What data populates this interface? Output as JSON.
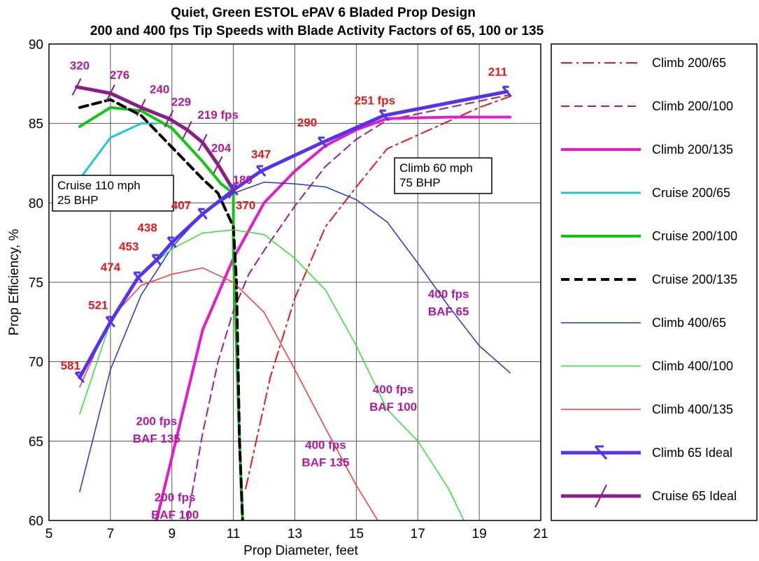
{
  "chart_data": {
    "type": "line",
    "title": "Quiet, Green ESTOL ePAV 6 Bladed Prop Design",
    "subtitle": "200 and 400 fps Tip Speeds with Blade Activity Factors of 65, 100 or 135",
    "xlabel": "Prop Diameter, feet",
    "ylabel": "Prop Efficiency, %",
    "xlim": [
      5,
      21
    ],
    "ylim": [
      60,
      90
    ],
    "xticks": [
      5,
      7,
      9,
      11,
      13,
      15,
      17,
      19,
      21
    ],
    "yticks": [
      60,
      65,
      70,
      75,
      80,
      85,
      90
    ],
    "grid": true,
    "legend_position": "right",
    "series": [
      {
        "name": "Climb 200/65",
        "color": "#e31a1c",
        "dash": "dashdot",
        "width": 2,
        "x": [
          11.4,
          12.2,
          13.0,
          14.0,
          15.0,
          16.0,
          17.5,
          19.0,
          20.0
        ],
        "y": [
          62.0,
          69.0,
          74.0,
          78.5,
          81.0,
          83.4,
          84.7,
          86.0,
          86.7
        ]
      },
      {
        "name": "Climb 200/100",
        "color": "#9d1f8f",
        "dash": "dash",
        "width": 2,
        "x": [
          9.5,
          10.0,
          10.5,
          11.0,
          11.5,
          12.0,
          13.0,
          14.0,
          15.0,
          16.0,
          18.0,
          20.0
        ],
        "y": [
          60.0,
          65.5,
          70.0,
          73.2,
          75.5,
          77.0,
          79.8,
          82.3,
          84.0,
          85.2,
          86.0,
          86.8
        ]
      },
      {
        "name": "Climb 200/135",
        "color": "#e11dc9",
        "dash": "solid",
        "width": 4,
        "x": [
          8.5,
          9.0,
          9.5,
          10.0,
          11.0,
          12.0,
          13.0,
          14.0,
          15.0,
          16.0,
          18.0,
          20.0
        ],
        "y": [
          60.0,
          64.0,
          68.0,
          72.0,
          76.5,
          80.0,
          82.0,
          83.6,
          84.6,
          85.3,
          85.4,
          85.4
        ]
      },
      {
        "name": "Cruise 200/65",
        "color": "#22c6cf",
        "dash": "solid",
        "width": 3,
        "x": [
          6.0,
          7.0,
          8.0,
          8.5
        ],
        "y": [
          81.5,
          84.1,
          85.0,
          85.0
        ]
      },
      {
        "name": "Cruise 200/100",
        "color": "#11c711",
        "dash": "solid",
        "width": 4,
        "x": [
          6.0,
          7.0,
          8.0,
          9.0,
          10.0,
          10.6,
          11.0,
          11.0,
          11.2,
          11.3
        ],
        "y": [
          84.8,
          86.0,
          85.8,
          84.7,
          82.6,
          81.2,
          80.6,
          77.0,
          65.0,
          60.0
        ]
      },
      {
        "name": "Cruise 200/135",
        "color": "#000000",
        "dash": "dash",
        "width": 4,
        "x": [
          6.0,
          7.0,
          8.0,
          9.0,
          10.0,
          10.5,
          11.0,
          11.1,
          11.2,
          11.3
        ],
        "y": [
          86.0,
          86.5,
          85.5,
          83.5,
          81.5,
          80.6,
          78.5,
          75.0,
          65.0,
          60.0
        ]
      },
      {
        "name": "Climb 400/65",
        "color": "#2233dd",
        "dash": "solid",
        "width": 1.5,
        "x": [
          6.0,
          7.0,
          8.0,
          9.0,
          10.0,
          11.0,
          12.0,
          13.0,
          14.0,
          15.0,
          16.0,
          17.0,
          18.0,
          19.0,
          20.0
        ],
        "y": [
          61.8,
          69.5,
          74.2,
          77.2,
          79.3,
          80.6,
          81.3,
          81.2,
          81.0,
          80.2,
          78.8,
          76.2,
          73.5,
          71.0,
          69.3
        ]
      },
      {
        "name": "Climb 400/100",
        "color": "#2ee32e",
        "dash": "solid",
        "width": 1.5,
        "x": [
          6.0,
          7.0,
          8.0,
          9.0,
          10.0,
          11.0,
          12.0,
          13.0,
          14.0,
          15.0,
          16.0,
          17.0,
          18.0,
          18.5
        ],
        "y": [
          66.7,
          72.5,
          75.5,
          77.1,
          78.1,
          78.3,
          78.0,
          76.5,
          74.5,
          71.0,
          67.0,
          65.0,
          62.0,
          60.0
        ]
      },
      {
        "name": "Climb 400/135",
        "color": "#ff3333",
        "dash": "solid",
        "width": 1.5,
        "x": [
          6.0,
          7.0,
          8.0,
          9.0,
          10.0,
          11.0,
          12.0,
          13.0,
          14.0,
          15.0,
          15.7
        ],
        "y": [
          68.4,
          72.7,
          74.8,
          75.5,
          75.9,
          75.0,
          73.1,
          69.5,
          65.8,
          62.2,
          60.0
        ]
      },
      {
        "name": "Climb 65 Ideal",
        "color": "#5533ee",
        "dash": "solid",
        "width": 5,
        "x": [
          6.0,
          7.0,
          7.9,
          8.5,
          9.0,
          10.0,
          11.0,
          11.9,
          13.9,
          15.9,
          19.9
        ],
        "y": [
          69.0,
          72.5,
          75.3,
          76.4,
          77.5,
          79.3,
          80.8,
          82.0,
          83.8,
          85.5,
          87.0
        ]
      },
      {
        "name": "Cruise 65 Ideal",
        "color": "#8c1c86",
        "dash": "solid",
        "width": 5,
        "x": [
          5.9,
          7.0,
          8.0,
          8.9,
          9.5,
          10.0,
          10.5,
          11.0
        ],
        "y": [
          87.3,
          86.9,
          86.0,
          85.3,
          84.6,
          83.8,
          82.4,
          80.8
        ]
      }
    ],
    "annotations": [
      {
        "text": "581",
        "color": "red",
        "x": 5.7,
        "y": 69.5
      },
      {
        "text": "521",
        "color": "red",
        "x": 6.6,
        "y": 73.3
      },
      {
        "text": "474",
        "color": "red",
        "x": 7.0,
        "y": 75.7
      },
      {
        "text": "453",
        "color": "red",
        "x": 7.6,
        "y": 77.0
      },
      {
        "text": "438",
        "color": "red",
        "x": 8.2,
        "y": 78.2
      },
      {
        "text": "407",
        "color": "red",
        "x": 9.3,
        "y": 79.6
      },
      {
        "text": "370",
        "color": "red",
        "x": 11.4,
        "y": 79.6
      },
      {
        "text": "347",
        "color": "red",
        "x": 11.9,
        "y": 82.8
      },
      {
        "text": "290",
        "color": "red",
        "x": 13.4,
        "y": 84.8
      },
      {
        "text": "251 fps",
        "color": "red",
        "x": 15.6,
        "y": 86.2
      },
      {
        "text": "211",
        "color": "red",
        "x": 19.6,
        "y": 88.0
      },
      {
        "text": "320",
        "color": "magenta",
        "x": 6.0,
        "y": 88.4
      },
      {
        "text": "276",
        "color": "magenta",
        "x": 7.3,
        "y": 87.8
      },
      {
        "text": "240",
        "color": "magenta",
        "x": 8.6,
        "y": 86.9
      },
      {
        "text": "229",
        "color": "magenta",
        "x": 9.3,
        "y": 86.1
      },
      {
        "text": "219 fps",
        "color": "magenta",
        "x": 10.5,
        "y": 85.3
      },
      {
        "text": "204",
        "color": "magenta",
        "x": 10.6,
        "y": 83.2
      },
      {
        "text": "189",
        "color": "magenta",
        "x": 11.3,
        "y": 81.2
      },
      {
        "text": "400 fps",
        "color": "magenta",
        "x": 18.0,
        "y": 74.0
      },
      {
        "text": "BAF 65",
        "color": "magenta",
        "x": 18.0,
        "y": 72.9
      },
      {
        "text": "400 fps",
        "color": "magenta",
        "x": 16.2,
        "y": 68.0
      },
      {
        "text": "BAF 100",
        "color": "magenta",
        "x": 16.2,
        "y": 66.9
      },
      {
        "text": "400 fps",
        "color": "magenta",
        "x": 14.0,
        "y": 64.5
      },
      {
        "text": "BAF 135",
        "color": "magenta",
        "x": 14.0,
        "y": 63.4
      },
      {
        "text": "200 fps",
        "color": "magenta",
        "x": 8.5,
        "y": 66.0
      },
      {
        "text": "BAF 135",
        "color": "magenta",
        "x": 8.5,
        "y": 64.9
      },
      {
        "text": "200 fps",
        "color": "magenta",
        "x": 9.1,
        "y": 61.2
      },
      {
        "text": "BAF 100",
        "color": "magenta",
        "x": 9.1,
        "y": 60.1
      }
    ],
    "boxes": [
      {
        "lines": [
          "Cruise 110 mph",
          "25 BHP"
        ]
      },
      {
        "lines": [
          "Climb 60 mph",
          "75 BHP"
        ]
      }
    ]
  }
}
